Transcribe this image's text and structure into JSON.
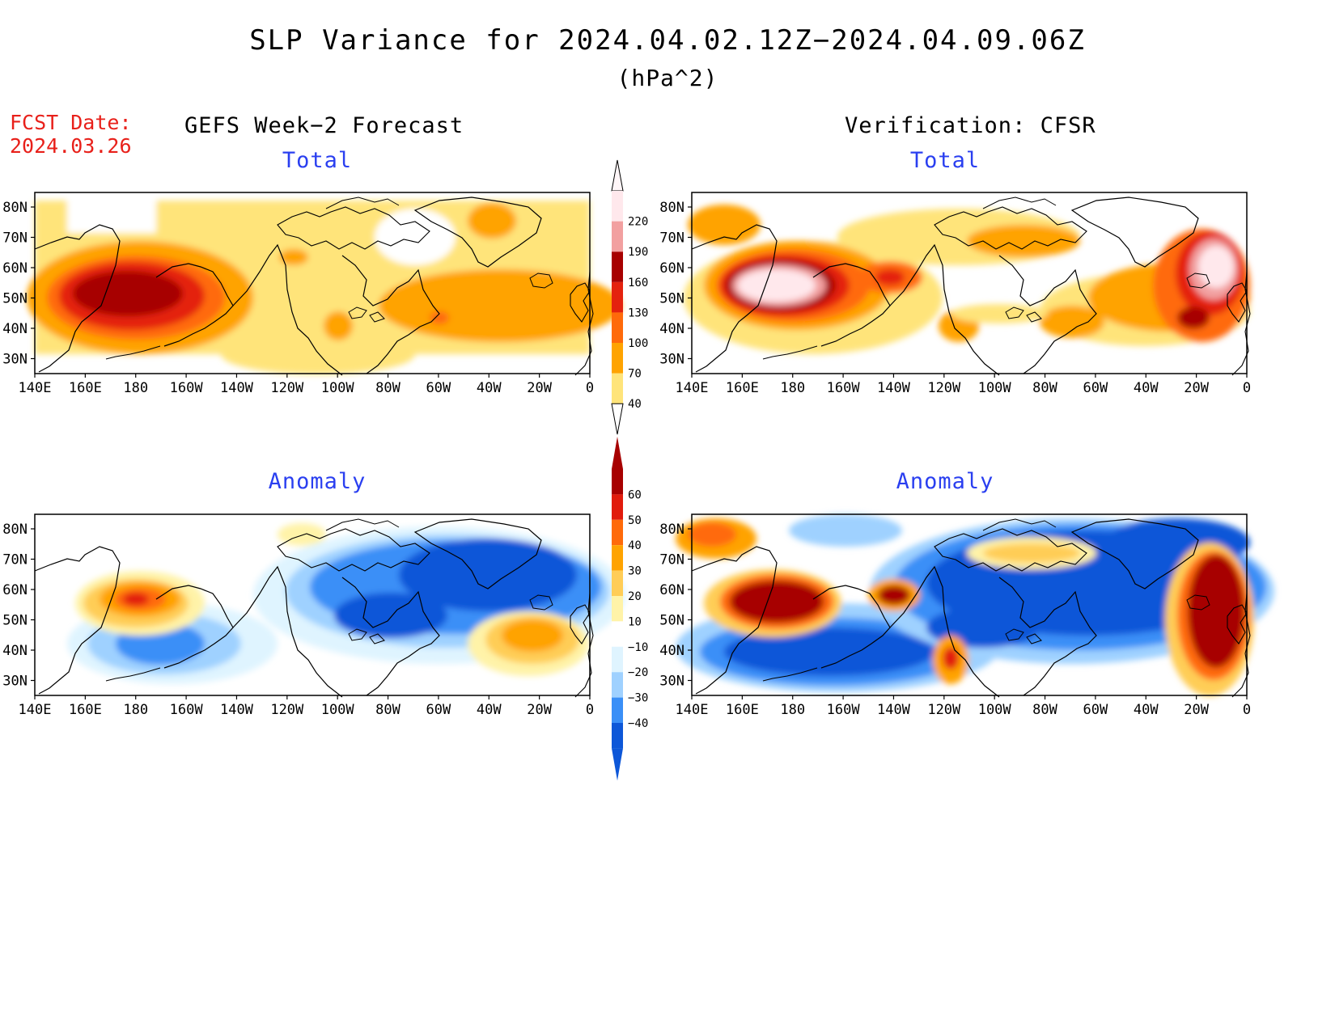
{
  "title": "SLP Variance for 2024.04.02.12Z−2024.04.09.06Z",
  "units": "(hPa^2)",
  "fcst_date": {
    "label": "FCST Date:",
    "value": "2024.03.26"
  },
  "columns": {
    "left": "GEFS Week−2 Forecast",
    "right": "Verification: CFSR"
  },
  "panels": {
    "forecast_total": "Total",
    "verification_total": "Total",
    "forecast_anomaly": "Anomaly",
    "verification_anomaly": "Anomaly"
  },
  "axes": {
    "lat_ticks": [
      "80N",
      "70N",
      "60N",
      "50N",
      "40N",
      "30N"
    ],
    "lon_ticks": [
      "140E",
      "160E",
      "180",
      "160W",
      "140W",
      "120W",
      "100W",
      "80W",
      "60W",
      "40W",
      "20W",
      "0"
    ]
  },
  "colorbars": {
    "total": {
      "labels": [
        "40",
        "70",
        "100",
        "130",
        "160",
        "190",
        "220"
      ],
      "colors": [
        "#ffe47a",
        "#ffa300",
        "#ff6a0a",
        "#e4220e",
        "#a70000",
        "#f2a0a0",
        "#ffe8ec"
      ]
    },
    "anomaly": {
      "labels": [
        "60",
        "50",
        "40",
        "30",
        "20",
        "10",
        "−10",
        "−20",
        "−30",
        "−40"
      ],
      "colors": [
        "#a70000",
        "#e11b0c",
        "#ff6a0a",
        "#ffa300",
        "#ffcd57",
        "#fff3a8",
        "#ffffff",
        "#dff4ff",
        "#9fd1ff",
        "#3a8ff7",
        "#0d57d8"
      ]
    }
  }
}
